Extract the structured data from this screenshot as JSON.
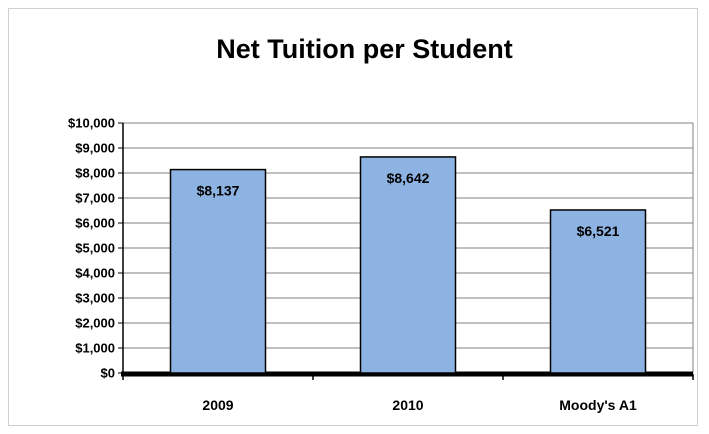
{
  "chart_data": {
    "type": "bar",
    "title": "Net Tuition per Student",
    "xlabel": "",
    "ylabel": "",
    "categories": [
      "2009",
      "2010",
      "Moody's A1"
    ],
    "values": [
      8137,
      8642,
      6521
    ],
    "data_labels": [
      "$8,137",
      "$8,642",
      "$6,521"
    ],
    "ylim": [
      0,
      10000
    ],
    "y_ticks": [
      0,
      1000,
      2000,
      3000,
      4000,
      5000,
      6000,
      7000,
      8000,
      9000,
      10000
    ],
    "y_tick_labels": [
      "$0",
      "$1,000",
      "$2,000",
      "$3,000",
      "$4,000",
      "$5,000",
      "$6,000",
      "$7,000",
      "$8,000",
      "$9,000",
      "$10,000"
    ],
    "grid": true,
    "legend": "none",
    "colors": {
      "bar_fill": "#8db3e2",
      "bar_stroke": "#000000",
      "grid": "#808080",
      "axis": "#000000"
    }
  }
}
